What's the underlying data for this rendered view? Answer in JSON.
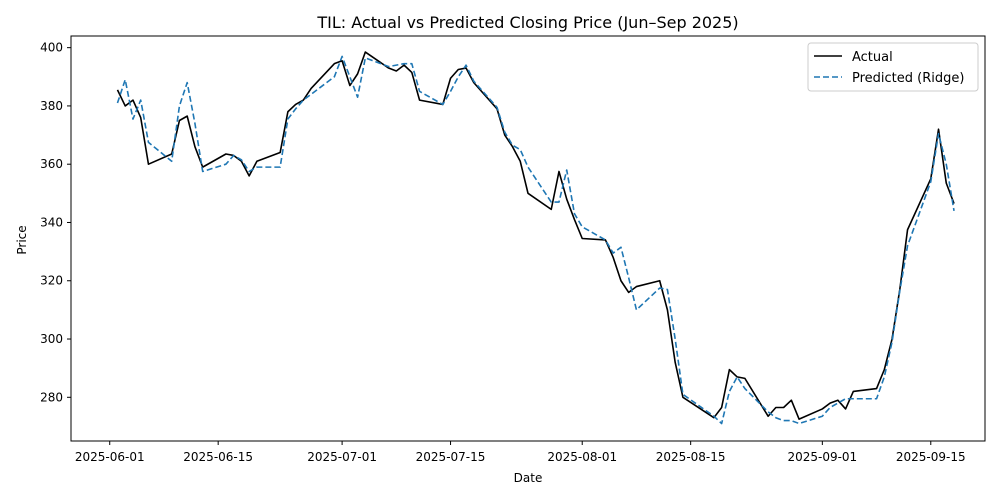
{
  "chart_data": {
    "type": "line",
    "title": "TIL: Actual vs Predicted Closing Price (Jun–Sep 2025)",
    "xlabel": "Date",
    "ylabel": "Price",
    "xlim": [
      "2025-05-27",
      "2025-09-22"
    ],
    "ylim": [
      265,
      404
    ],
    "x_ticks": [
      "2025-06-01",
      "2025-06-15",
      "2025-07-01",
      "2025-07-15",
      "2025-08-01",
      "2025-08-15",
      "2025-09-01",
      "2025-09-15"
    ],
    "y_ticks": [
      280,
      300,
      320,
      340,
      360,
      380,
      400
    ],
    "grid": false,
    "legend_position": "top-right",
    "series": [
      {
        "name": "Actual",
        "color": "#000000",
        "style": "solid",
        "points": [
          [
            "2025-06-02",
            385.5
          ],
          [
            "2025-06-03",
            380.0
          ],
          [
            "2025-06-04",
            382.0
          ],
          [
            "2025-06-05",
            376.0
          ],
          [
            "2025-06-06",
            360.0
          ],
          [
            "2025-06-09",
            363.5
          ],
          [
            "2025-06-10",
            375.0
          ],
          [
            "2025-06-11",
            376.5
          ],
          [
            "2025-06-12",
            366.0
          ],
          [
            "2025-06-13",
            359.0
          ],
          [
            "2025-06-16",
            363.5
          ],
          [
            "2025-06-17",
            363.0
          ],
          [
            "2025-06-18",
            361.0
          ],
          [
            "2025-06-19",
            356.0
          ],
          [
            "2025-06-20",
            361.0
          ],
          [
            "2025-06-23",
            364.0
          ],
          [
            "2025-06-24",
            378.0
          ],
          [
            "2025-06-25",
            380.5
          ],
          [
            "2025-06-26",
            382.0
          ],
          [
            "2025-06-27",
            386.0
          ],
          [
            "2025-06-30",
            394.5
          ],
          [
            "2025-07-01",
            395.5
          ],
          [
            "2025-07-02",
            387.0
          ],
          [
            "2025-07-03",
            391.0
          ],
          [
            "2025-07-04",
            398.5
          ],
          [
            "2025-07-07",
            393.0
          ],
          [
            "2025-07-08",
            392.0
          ],
          [
            "2025-07-09",
            394.0
          ],
          [
            "2025-07-10",
            391.5
          ],
          [
            "2025-07-11",
            382.0
          ],
          [
            "2025-07-14",
            380.5
          ],
          [
            "2025-07-15",
            389.5
          ],
          [
            "2025-07-16",
            392.5
          ],
          [
            "2025-07-17",
            393.0
          ],
          [
            "2025-07-18",
            388.0
          ],
          [
            "2025-07-21",
            379.0
          ],
          [
            "2025-07-22",
            370.0
          ],
          [
            "2025-07-23",
            366.0
          ],
          [
            "2025-07-24",
            361.0
          ],
          [
            "2025-07-25",
            350.0
          ],
          [
            "2025-07-28",
            344.5
          ],
          [
            "2025-07-29",
            357.5
          ],
          [
            "2025-07-30",
            348.0
          ],
          [
            "2025-07-31",
            341.0
          ],
          [
            "2025-08-01",
            334.5
          ],
          [
            "2025-08-04",
            334.0
          ],
          [
            "2025-08-05",
            328.0
          ],
          [
            "2025-08-06",
            320.0
          ],
          [
            "2025-08-07",
            316.0
          ],
          [
            "2025-08-08",
            318.0
          ],
          [
            "2025-08-11",
            320.0
          ],
          [
            "2025-08-12",
            310.0
          ],
          [
            "2025-08-13",
            292.0
          ],
          [
            "2025-08-14",
            280.0
          ],
          [
            "2025-08-18",
            273.0
          ],
          [
            "2025-08-19",
            276.5
          ],
          [
            "2025-08-20",
            289.5
          ],
          [
            "2025-08-21",
            287.0
          ],
          [
            "2025-08-22",
            286.5
          ],
          [
            "2025-08-25",
            273.5
          ],
          [
            "2025-08-26",
            276.5
          ],
          [
            "2025-08-27",
            276.5
          ],
          [
            "2025-08-28",
            279.0
          ],
          [
            "2025-08-29",
            272.5
          ],
          [
            "2025-09-01",
            276.0
          ],
          [
            "2025-09-02",
            278.0
          ],
          [
            "2025-09-03",
            279.0
          ],
          [
            "2025-09-04",
            276.0
          ],
          [
            "2025-09-05",
            282.0
          ],
          [
            "2025-09-08",
            283.0
          ],
          [
            "2025-09-09",
            289.5
          ],
          [
            "2025-09-10",
            300.0
          ],
          [
            "2025-09-11",
            317.0
          ],
          [
            "2025-09-12",
            337.5
          ],
          [
            "2025-09-15",
            355.0
          ],
          [
            "2025-09-16",
            372.0
          ],
          [
            "2025-09-17",
            353.5
          ],
          [
            "2025-09-18",
            346.5
          ]
        ]
      },
      {
        "name": "Predicted (Ridge)",
        "color": "#1f77b4",
        "style": "dashed",
        "points": [
          [
            "2025-06-02",
            381.0
          ],
          [
            "2025-06-03",
            389.0
          ],
          [
            "2025-06-04",
            375.5
          ],
          [
            "2025-06-05",
            382.0
          ],
          [
            "2025-06-06",
            367.5
          ],
          [
            "2025-06-09",
            361.0
          ],
          [
            "2025-06-10",
            380.0
          ],
          [
            "2025-06-11",
            388.0
          ],
          [
            "2025-06-12",
            374.0
          ],
          [
            "2025-06-13",
            357.5
          ],
          [
            "2025-06-16",
            360.0
          ],
          [
            "2025-06-17",
            363.0
          ],
          [
            "2025-06-18",
            361.5
          ],
          [
            "2025-06-19",
            357.5
          ],
          [
            "2025-06-20",
            359.0
          ],
          [
            "2025-06-23",
            359.0
          ],
          [
            "2025-06-24",
            375.5
          ],
          [
            "2025-06-25",
            379.0
          ],
          [
            "2025-06-26",
            382.0
          ],
          [
            "2025-06-27",
            384.0
          ],
          [
            "2025-06-30",
            390.0
          ],
          [
            "2025-07-01",
            397.0
          ],
          [
            "2025-07-02",
            390.0
          ],
          [
            "2025-07-03",
            383.0
          ],
          [
            "2025-07-04",
            396.5
          ],
          [
            "2025-07-07",
            393.5
          ],
          [
            "2025-07-08",
            394.0
          ],
          [
            "2025-07-09",
            394.5
          ],
          [
            "2025-07-10",
            394.5
          ],
          [
            "2025-07-11",
            385.0
          ],
          [
            "2025-07-14",
            380.5
          ],
          [
            "2025-07-15",
            385.0
          ],
          [
            "2025-07-16",
            390.0
          ],
          [
            "2025-07-17",
            394.0
          ],
          [
            "2025-07-18",
            388.5
          ],
          [
            "2025-07-21",
            379.5
          ],
          [
            "2025-07-22",
            371.0
          ],
          [
            "2025-07-23",
            366.5
          ],
          [
            "2025-07-24",
            365.0
          ],
          [
            "2025-07-25",
            359.0
          ],
          [
            "2025-07-28",
            347.0
          ],
          [
            "2025-07-29",
            347.0
          ],
          [
            "2025-07-30",
            358.0
          ],
          [
            "2025-07-31",
            343.0
          ],
          [
            "2025-08-01",
            338.5
          ],
          [
            "2025-08-04",
            334.0
          ],
          [
            "2025-08-05",
            329.5
          ],
          [
            "2025-08-06",
            331.5
          ],
          [
            "2025-08-07",
            321.0
          ],
          [
            "2025-08-08",
            310.0
          ],
          [
            "2025-08-11",
            317.5
          ],
          [
            "2025-08-12",
            317.0
          ],
          [
            "2025-08-13",
            300.0
          ],
          [
            "2025-08-14",
            281.0
          ],
          [
            "2025-08-18",
            273.5
          ],
          [
            "2025-08-19",
            271.0
          ],
          [
            "2025-08-20",
            282.0
          ],
          [
            "2025-08-21",
            287.0
          ],
          [
            "2025-08-22",
            283.0
          ],
          [
            "2025-08-25",
            275.0
          ],
          [
            "2025-08-26",
            273.0
          ],
          [
            "2025-08-27",
            272.0
          ],
          [
            "2025-08-28",
            272.0
          ],
          [
            "2025-08-29",
            271.0
          ],
          [
            "2025-09-01",
            273.5
          ],
          [
            "2025-09-02",
            276.5
          ],
          [
            "2025-09-03",
            278.0
          ],
          [
            "2025-09-04",
            279.5
          ],
          [
            "2025-09-05",
            279.5
          ],
          [
            "2025-09-08",
            279.5
          ],
          [
            "2025-09-09",
            287.0
          ],
          [
            "2025-09-10",
            299.0
          ],
          [
            "2025-09-11",
            316.5
          ],
          [
            "2025-09-12",
            332.0
          ],
          [
            "2025-09-15",
            354.0
          ],
          [
            "2025-09-16",
            370.5
          ],
          [
            "2025-09-17",
            360.0
          ],
          [
            "2025-09-18",
            344.0
          ]
        ]
      }
    ]
  }
}
